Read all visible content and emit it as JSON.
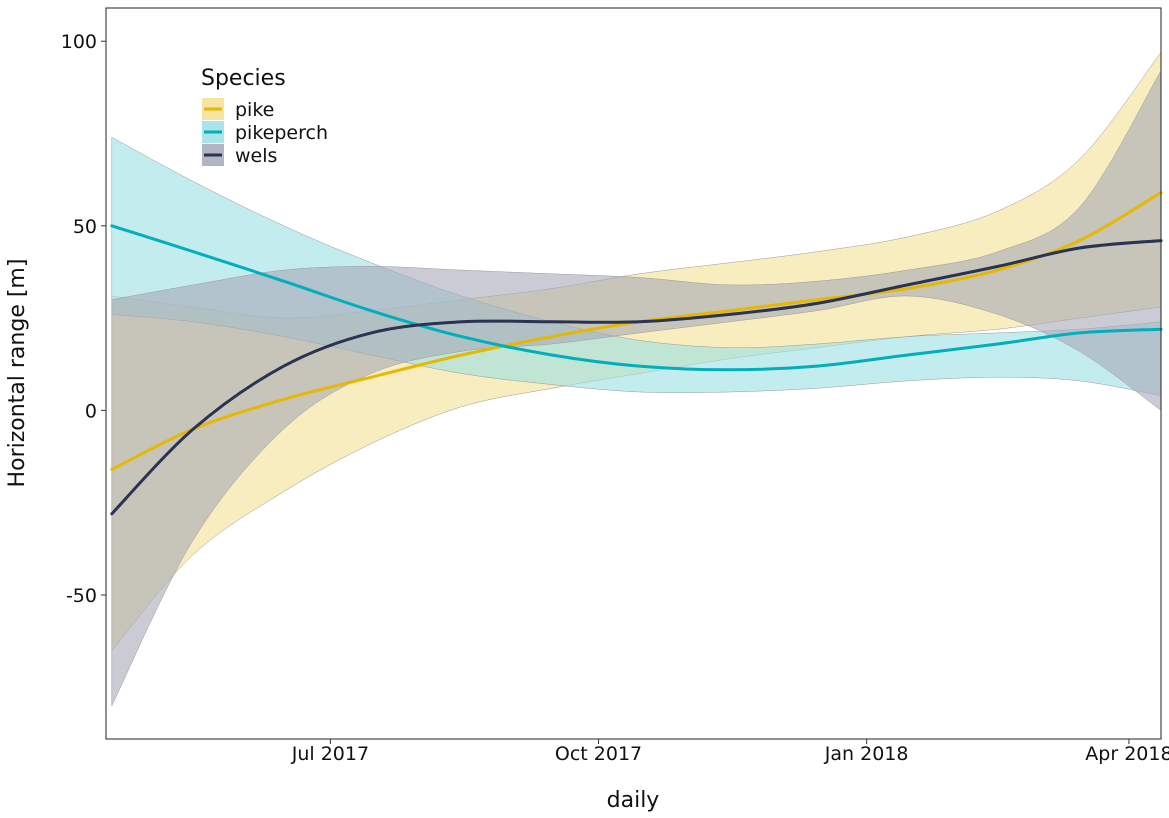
{
  "chart_data": {
    "type": "line",
    "xlabel": "daily",
    "ylabel": "Horizontal range [m]",
    "x_range": [
      "2017-04-15",
      "2018-04-12"
    ],
    "ylim": [
      -89,
      109
    ],
    "y_ticks": [
      -50,
      0,
      50,
      100
    ],
    "x_ticks": [
      {
        "date": "2017-07-01",
        "label": "Jul 2017"
      },
      {
        "date": "2017-10-01",
        "label": "Oct 2017"
      },
      {
        "date": "2018-01-01",
        "label": "Jan 2018"
      },
      {
        "date": "2018-04-01",
        "label": "Apr 2018"
      }
    ],
    "grid": false,
    "legend": {
      "title": "Species",
      "position": "top-left"
    },
    "series": [
      {
        "name": "pike",
        "color": "#E6B800",
        "fill": "#F4E192",
        "x": [
          "2017-04-17",
          "2017-05-15",
          "2017-06-15",
          "2017-07-15",
          "2017-08-15",
          "2017-09-15",
          "2017-10-15",
          "2017-11-15",
          "2017-12-15",
          "2018-01-15",
          "2018-02-15",
          "2018-03-15",
          "2018-04-12"
        ],
        "y": [
          -16,
          -5,
          3,
          9,
          15,
          20,
          24,
          27,
          30,
          33,
          38,
          46,
          59
        ],
        "lower": [
          -65,
          -39,
          -22,
          -9,
          1,
          6,
          10,
          14,
          17,
          20,
          22,
          25,
          28
        ],
        "upper": [
          31,
          28,
          25,
          27,
          30,
          33,
          37,
          40,
          43,
          47,
          54,
          68,
          97
        ]
      },
      {
        "name": "pikeperch",
        "color": "#00AFBB",
        "fill": "#9BDFE4",
        "x": [
          "2017-04-17",
          "2017-05-15",
          "2017-06-15",
          "2017-07-15",
          "2017-08-15",
          "2017-09-15",
          "2017-10-15",
          "2017-11-15",
          "2017-12-15",
          "2018-01-15",
          "2018-02-15",
          "2018-03-15",
          "2018-04-12"
        ],
        "y": [
          50,
          43,
          35,
          27,
          20,
          15,
          12,
          11,
          12,
          15,
          18,
          21,
          22
        ],
        "lower": [
          26,
          24,
          20,
          15,
          10,
          7,
          5,
          5,
          6,
          8,
          9,
          8,
          4
        ],
        "upper": [
          74,
          62,
          50,
          40,
          31,
          24,
          19,
          17,
          18,
          20,
          21,
          22,
          24
        ]
      },
      {
        "name": "wels",
        "color": "#293352",
        "fill": "#A6A8B8",
        "x": [
          "2017-04-17",
          "2017-05-15",
          "2017-06-15",
          "2017-07-15",
          "2017-08-15",
          "2017-09-15",
          "2017-10-15",
          "2017-11-15",
          "2017-12-15",
          "2018-01-15",
          "2018-02-15",
          "2018-03-15",
          "2018-04-12"
        ],
        "y": [
          -28,
          -5,
          12,
          21,
          24,
          24,
          24,
          26,
          29,
          34,
          39,
          44,
          46
        ],
        "lower": [
          -80,
          -35,
          -5,
          10,
          16,
          18,
          21,
          24,
          27,
          31,
          26,
          16,
          0
        ],
        "upper": [
          30,
          34,
          38,
          39,
          38,
          37,
          36,
          34,
          35,
          38,
          43,
          55,
          92
        ]
      }
    ]
  }
}
